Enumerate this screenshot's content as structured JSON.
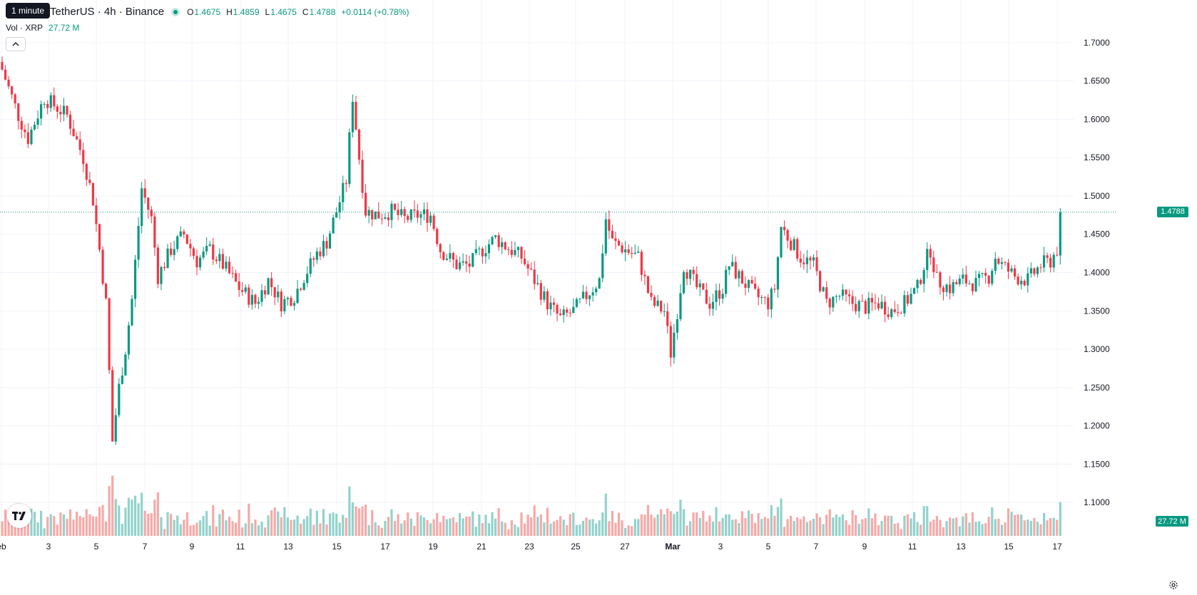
{
  "tooltip": "1 minute",
  "header": {
    "symbol": "TetherUS · 4h · Binance",
    "open_label": "O",
    "open": "1.4675",
    "high_label": "H",
    "high": "1.4859",
    "low_label": "L",
    "low": "1.4675",
    "close_label": "C",
    "close": "1.4788",
    "change": "+0.0114 (+0.78%)"
  },
  "volume_legend": {
    "label": "Vol · XRP",
    "value": "27.72 M"
  },
  "price_axis": {
    "ticks": [
      "1.7000",
      "1.6500",
      "1.6000",
      "1.5500",
      "1.5000",
      "1.4500",
      "1.4000",
      "1.3500",
      "1.3000",
      "1.2500",
      "1.2000",
      "1.1500",
      "1.1000"
    ],
    "last_price": "1.4788",
    "volume_tag": "27.72 M"
  },
  "time_axis": {
    "ticks": [
      "eb",
      "3",
      "5",
      "7",
      "9",
      "11",
      "13",
      "15",
      "17",
      "19",
      "21",
      "23",
      "25",
      "27",
      "Mar",
      "3",
      "5",
      "7",
      "9",
      "11",
      "13",
      "15",
      "17"
    ]
  },
  "colors": {
    "up": "#089981",
    "down": "#f23645",
    "up_vol": "#92d2cc",
    "down_vol": "#f7a9a7",
    "grid": "#f0f3fa",
    "text": "#131722"
  },
  "chart_data": {
    "type": "candlestick",
    "interval": "4h",
    "last_price": 1.4788,
    "y_range": [
      1.075,
      1.7185
    ],
    "anchors": [
      [
        0,
        1.665
      ],
      [
        5,
        1.605
      ],
      [
        8,
        1.575
      ],
      [
        13,
        1.628
      ],
      [
        20,
        1.605
      ],
      [
        25,
        1.55
      ],
      [
        28,
        1.495
      ],
      [
        30,
        1.43
      ],
      [
        32,
        1.36
      ],
      [
        34,
        1.18
      ],
      [
        36,
        1.25
      ],
      [
        38,
        1.3
      ],
      [
        40,
        1.365
      ],
      [
        43,
        1.51
      ],
      [
        46,
        1.47
      ],
      [
        48,
        1.395
      ],
      [
        52,
        1.43
      ],
      [
        56,
        1.45
      ],
      [
        60,
        1.415
      ],
      [
        64,
        1.43
      ],
      [
        68,
        1.41
      ],
      [
        73,
        1.38
      ],
      [
        78,
        1.36
      ],
      [
        82,
        1.39
      ],
      [
        86,
        1.36
      ],
      [
        90,
        1.37
      ],
      [
        93,
        1.395
      ],
      [
        97,
        1.425
      ],
      [
        100,
        1.44
      ],
      [
        103,
        1.48
      ],
      [
        106,
        1.52
      ],
      [
        108,
        1.63
      ],
      [
        110,
        1.55
      ],
      [
        112,
        1.48
      ],
      [
        116,
        1.475
      ],
      [
        120,
        1.48
      ],
      [
        124,
        1.47
      ],
      [
        128,
        1.475
      ],
      [
        132,
        1.475
      ],
      [
        135,
        1.43
      ],
      [
        140,
        1.41
      ],
      [
        144,
        1.41
      ],
      [
        148,
        1.43
      ],
      [
        152,
        1.445
      ],
      [
        155,
        1.435
      ],
      [
        160,
        1.42
      ],
      [
        164,
        1.39
      ],
      [
        168,
        1.36
      ],
      [
        172,
        1.34
      ],
      [
        176,
        1.35
      ],
      [
        180,
        1.37
      ],
      [
        184,
        1.39
      ],
      [
        186,
        1.47
      ],
      [
        188,
        1.44
      ],
      [
        192,
        1.43
      ],
      [
        196,
        1.42
      ],
      [
        200,
        1.36
      ],
      [
        204,
        1.35
      ],
      [
        206,
        1.295
      ],
      [
        208,
        1.35
      ],
      [
        210,
        1.41
      ],
      [
        214,
        1.38
      ],
      [
        218,
        1.36
      ],
      [
        222,
        1.38
      ],
      [
        224,
        1.41
      ],
      [
        228,
        1.39
      ],
      [
        232,
        1.37
      ],
      [
        236,
        1.36
      ],
      [
        238,
        1.38
      ],
      [
        240,
        1.46
      ],
      [
        243,
        1.44
      ],
      [
        246,
        1.42
      ],
      [
        250,
        1.41
      ],
      [
        254,
        1.36
      ],
      [
        258,
        1.37
      ],
      [
        262,
        1.36
      ],
      [
        266,
        1.355
      ],
      [
        270,
        1.36
      ],
      [
        274,
        1.35
      ],
      [
        278,
        1.36
      ],
      [
        282,
        1.38
      ],
      [
        284,
        1.41
      ],
      [
        286,
        1.43
      ],
      [
        288,
        1.39
      ],
      [
        292,
        1.38
      ],
      [
        296,
        1.39
      ],
      [
        300,
        1.385
      ],
      [
        304,
        1.395
      ],
      [
        306,
        1.42
      ],
      [
        308,
        1.41
      ],
      [
        312,
        1.395
      ],
      [
        316,
        1.39
      ],
      [
        320,
        1.41
      ],
      [
        323,
        1.415
      ],
      [
        325,
        1.43
      ],
      [
        326,
        1.4788
      ]
    ]
  }
}
